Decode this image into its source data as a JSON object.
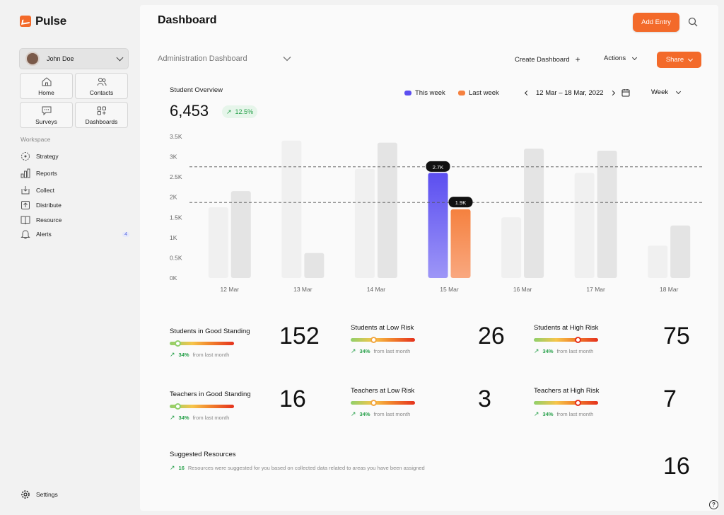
{
  "app": {
    "name": "Pulse"
  },
  "user": {
    "name": "John Doe"
  },
  "quick_tiles": [
    {
      "label": "Home",
      "icon": "home-icon"
    },
    {
      "label": "Contacts",
      "icon": "contacts-icon"
    },
    {
      "label": "Surveys",
      "icon": "chat-icon"
    },
    {
      "label": "Dashboards",
      "icon": "dashboards-icon"
    }
  ],
  "workspace_label": "Workspace",
  "nav": [
    {
      "label": "Strategy",
      "icon": "strategy-icon"
    },
    {
      "label": "Reports",
      "icon": "bar-chart-icon"
    },
    {
      "label": "Collect",
      "icon": "collect-icon"
    },
    {
      "label": "Distribute",
      "icon": "distribute-icon"
    },
    {
      "label": "Resource",
      "icon": "book-icon"
    },
    {
      "label": "Alerts",
      "icon": "bell-icon",
      "badge": "4"
    }
  ],
  "settings_label": "Settings",
  "header": {
    "title": "Dashboard",
    "add_entry": "Add Entry",
    "subtitle": "Administration Dashboard",
    "create_dashboard": "Create Dashboard",
    "actions": "Actions",
    "share": "Share"
  },
  "overview": {
    "label": "Student Overview",
    "value": "6,453",
    "delta": "12.5%",
    "legend_this": "This week",
    "legend_last": "Last week",
    "date_range": "12 Mar – 18 Mar, 2022",
    "period": "Week"
  },
  "colors": {
    "accent": "#f36a2a",
    "this_week": "#5b4ef0",
    "last_week": "#f5813f",
    "positive": "#27a04a"
  },
  "chart_data": {
    "type": "bar",
    "categories": [
      "12 Mar",
      "13 Mar",
      "14 Mar",
      "15 Mar",
      "16 Mar",
      "17 Mar",
      "18 Mar"
    ],
    "series": [
      {
        "name": "This week",
        "values": [
          1750,
          3400,
          2700,
          2600,
          1500,
          2600,
          800
        ]
      },
      {
        "name": "Last week",
        "values": [
          2150,
          620,
          3350,
          1700,
          3200,
          3150,
          1300
        ]
      }
    ],
    "highlight_index": 3,
    "data_labels": [
      "2.7K",
      "1.9K"
    ],
    "reference_lines": [
      2750,
      1870
    ],
    "ylim": [
      0,
      3500
    ],
    "yticks": [
      "0K",
      "0.5K",
      "1K",
      "1.5K",
      "2K",
      "2.5K",
      "3K",
      "3.5K"
    ],
    "xlabel": "",
    "ylabel": "",
    "title": ""
  },
  "stats": [
    {
      "title": "Students in Good Standing",
      "value": "152",
      "pct": "34%",
      "note": "from last month",
      "level": 0.12,
      "dot": "#8fd06b"
    },
    {
      "title": "Students at Low Risk",
      "value": "26",
      "pct": "34%",
      "note": "from last month",
      "level": 0.35,
      "dot": "#f2a640"
    },
    {
      "title": "Students at High Risk",
      "value": "75",
      "pct": "34%",
      "note": "from last month",
      "level": 0.68,
      "dot": "#e5311d"
    },
    {
      "title": "Teachers in Good Standing",
      "value": "16",
      "pct": "34%",
      "note": "from last month",
      "level": 0.12,
      "dot": "#8fd06b"
    },
    {
      "title": "Teachers at Low Risk",
      "value": "3",
      "pct": "34%",
      "note": "from last month",
      "level": 0.35,
      "dot": "#f2a640"
    },
    {
      "title": "Teachers at High Risk",
      "value": "7",
      "pct": "34%",
      "note": "from last month",
      "level": 0.68,
      "dot": "#e5311d"
    }
  ],
  "suggested": {
    "title": "Suggested Resources",
    "count": "16",
    "desc": "Resources were suggested for you based on collected data related to areas you have been assigned",
    "value": "16"
  },
  "help": "?"
}
